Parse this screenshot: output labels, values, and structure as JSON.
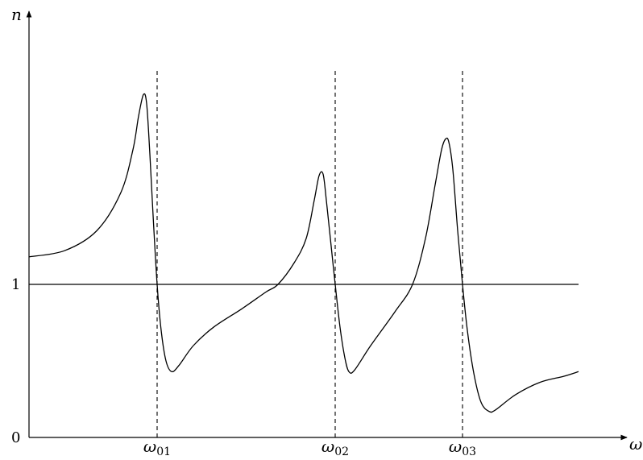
{
  "chart_data": {
    "type": "line",
    "title": "",
    "xlabel": "ω",
    "ylabel": "n",
    "xlim": [
      0,
      798
    ],
    "ylim": [
      0,
      2.7
    ],
    "grid": false,
    "legend": "none",
    "y_ticks": [
      {
        "value": 0,
        "label": "0"
      },
      {
        "value": 1,
        "label": "1"
      }
    ],
    "resonances": [
      {
        "name": "ω01",
        "sym": "ω",
        "sub": "01",
        "x": 195
      },
      {
        "name": "ω02",
        "sym": "ω",
        "sub": "02",
        "x": 416
      },
      {
        "name": "ω03",
        "sym": "ω",
        "sub": "03",
        "x": 574
      }
    ],
    "reference_line": {
      "y": 1,
      "x_range": [
        36,
        718
      ]
    },
    "series": [
      {
        "points": [
          [
            36,
            1.18
          ],
          [
            80,
            1.22
          ],
          [
            120,
            1.35
          ],
          [
            150,
            1.6
          ],
          [
            165,
            1.88
          ],
          [
            172,
            2.1
          ],
          [
            178,
            2.24
          ],
          [
            182,
            2.18
          ],
          [
            186,
            1.85
          ],
          [
            190,
            1.45
          ],
          [
            195,
            1.0
          ],
          [
            200,
            0.7
          ],
          [
            206,
            0.5
          ],
          [
            213,
            0.43
          ],
          [
            222,
            0.47
          ],
          [
            240,
            0.6
          ],
          [
            265,
            0.72
          ],
          [
            300,
            0.84
          ],
          [
            330,
            0.95
          ],
          [
            345,
            1.0
          ],
          [
            365,
            1.14
          ],
          [
            380,
            1.3
          ],
          [
            390,
            1.55
          ],
          [
            396,
            1.71
          ],
          [
            401,
            1.72
          ],
          [
            405,
            1.55
          ],
          [
            410,
            1.3
          ],
          [
            416,
            1.0
          ],
          [
            422,
            0.72
          ],
          [
            428,
            0.52
          ],
          [
            433,
            0.43
          ],
          [
            440,
            0.44
          ],
          [
            460,
            0.6
          ],
          [
            490,
            0.82
          ],
          [
            512,
            1.0
          ],
          [
            528,
            1.3
          ],
          [
            540,
            1.65
          ],
          [
            548,
            1.88
          ],
          [
            553,
            1.95
          ],
          [
            557,
            1.93
          ],
          [
            562,
            1.75
          ],
          [
            568,
            1.35
          ],
          [
            574,
            1.0
          ],
          [
            580,
            0.7
          ],
          [
            588,
            0.42
          ],
          [
            597,
            0.23
          ],
          [
            607,
            0.17
          ],
          [
            615,
            0.18
          ],
          [
            640,
            0.28
          ],
          [
            670,
            0.36
          ],
          [
            700,
            0.4
          ],
          [
            718,
            0.43
          ]
        ]
      }
    ]
  }
}
